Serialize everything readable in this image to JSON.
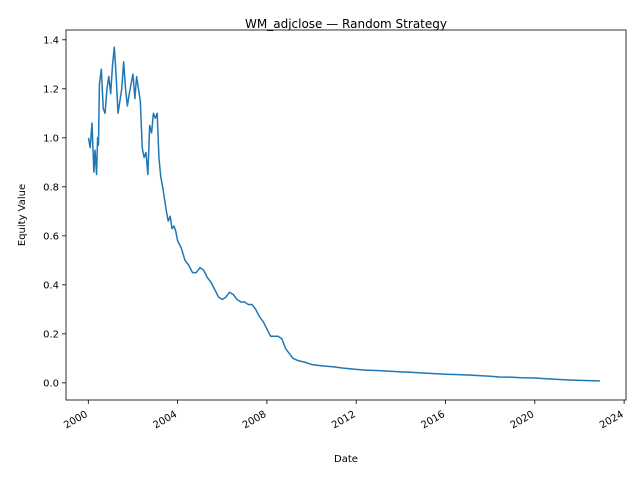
{
  "chart_data": {
    "type": "line",
    "title": "WM_adjclose — Random Strategy",
    "xlabel": "Date",
    "ylabel": "Equity Value",
    "xlim": [
      "1999-01-01",
      "2024-02-01"
    ],
    "ylim": [
      -0.07,
      1.44
    ],
    "x_ticks": [
      "2000",
      "2004",
      "2008",
      "2012",
      "2016",
      "2020",
      "2024"
    ],
    "y_ticks": [
      "0.0",
      "0.2",
      "0.4",
      "0.6",
      "0.8",
      "1.0",
      "1.2",
      "1.4"
    ],
    "grid": false,
    "line_color": "#1f77b4",
    "series": [
      {
        "x": [
          "2000-01-03",
          "2000-02-01",
          "2000-03-01",
          "2000-04-01",
          "2000-04-20",
          "2000-05-15",
          "2000-06-01",
          "2000-06-15",
          "2000-07-01",
          "2000-08-01",
          "2000-09-01",
          "2000-10-01",
          "2000-11-01",
          "2000-12-01",
          "2001-01-01",
          "2001-02-01",
          "2001-03-01",
          "2001-04-01",
          "2001-05-01",
          "2001-06-01",
          "2001-07-01",
          "2001-08-01",
          "2001-09-01",
          "2001-10-01",
          "2001-11-01",
          "2001-12-01",
          "2002-01-01",
          "2002-02-01",
          "2002-03-01",
          "2002-04-01",
          "2002-05-01",
          "2002-06-01",
          "2002-07-01",
          "2002-08-01",
          "2002-09-01",
          "2002-10-01",
          "2002-11-01",
          "2002-12-01",
          "2003-01-01",
          "2003-02-01",
          "2003-03-01",
          "2003-04-01",
          "2003-05-01",
          "2003-06-01",
          "2003-07-01",
          "2003-08-01",
          "2003-09-01",
          "2003-10-01",
          "2003-11-01",
          "2003-12-01",
          "2004-01-01",
          "2004-03-01",
          "2004-05-01",
          "2004-07-01",
          "2004-09-01",
          "2004-11-01",
          "2005-01-01",
          "2005-03-01",
          "2005-05-01",
          "2005-07-01",
          "2005-09-01",
          "2005-11-01",
          "2006-01-01",
          "2006-03-01",
          "2006-05-01",
          "2006-07-01",
          "2006-09-01",
          "2006-11-01",
          "2007-01-01",
          "2007-03-01",
          "2007-05-01",
          "2007-07-01",
          "2007-09-01",
          "2007-11-01",
          "2008-01-01",
          "2008-03-01",
          "2008-05-01",
          "2008-07-01",
          "2008-09-01",
          "2008-11-01",
          "2009-01-01",
          "2009-03-01",
          "2009-06-01",
          "2009-09-01",
          "2010-01-01",
          "2010-06-01",
          "2011-01-01",
          "2011-06-01",
          "2012-01-01",
          "2012-06-01",
          "2013-01-01",
          "2013-06-01",
          "2014-01-01",
          "2014-06-01",
          "2015-01-01",
          "2015-06-01",
          "2016-01-01",
          "2016-06-01",
          "2017-01-01",
          "2017-06-01",
          "2018-01-01",
          "2018-06-01",
          "2019-01-01",
          "2019-06-01",
          "2020-01-01",
          "2020-06-01",
          "2021-01-01",
          "2021-06-01",
          "2022-01-01",
          "2022-06-01",
          "2022-12-01"
        ],
        "values": [
          1.0,
          0.96,
          1.06,
          0.86,
          0.95,
          0.85,
          1.0,
          0.97,
          1.22,
          1.28,
          1.12,
          1.1,
          1.2,
          1.25,
          1.18,
          1.3,
          1.37,
          1.25,
          1.1,
          1.15,
          1.2,
          1.31,
          1.2,
          1.13,
          1.18,
          1.22,
          1.26,
          1.16,
          1.25,
          1.2,
          1.15,
          0.96,
          0.92,
          0.94,
          0.85,
          1.05,
          1.02,
          1.1,
          1.08,
          1.1,
          0.92,
          0.84,
          0.8,
          0.75,
          0.7,
          0.66,
          0.68,
          0.63,
          0.64,
          0.62,
          0.58,
          0.55,
          0.5,
          0.48,
          0.45,
          0.45,
          0.47,
          0.46,
          0.43,
          0.41,
          0.38,
          0.35,
          0.34,
          0.35,
          0.37,
          0.36,
          0.34,
          0.33,
          0.33,
          0.32,
          0.32,
          0.3,
          0.27,
          0.25,
          0.22,
          0.19,
          0.19,
          0.19,
          0.18,
          0.14,
          0.12,
          0.1,
          0.09,
          0.085,
          0.075,
          0.07,
          0.065,
          0.06,
          0.055,
          0.052,
          0.05,
          0.048,
          0.045,
          0.043,
          0.04,
          0.038,
          0.035,
          0.034,
          0.032,
          0.03,
          0.027,
          0.024,
          0.023,
          0.021,
          0.02,
          0.017,
          0.014,
          0.012,
          0.01,
          0.009,
          0.008
        ]
      }
    ]
  }
}
